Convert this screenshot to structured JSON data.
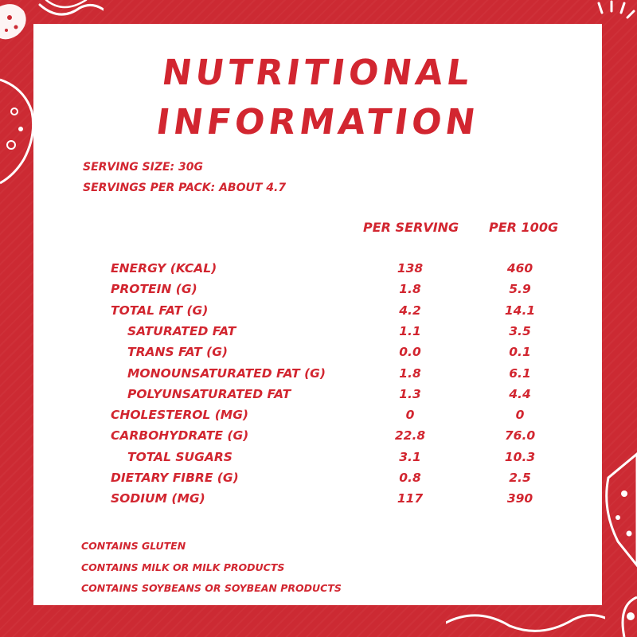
{
  "colors": {
    "background_red": "#cc2a33",
    "text_red": "#d22630",
    "panel": "#ffffff"
  },
  "title": {
    "line1": "NUTRITIONAL",
    "line2": "INFORMATION"
  },
  "serving": {
    "size": "SERVING SIZE: 30G",
    "per_pack": "SERVINGS PER PACK: ABOUT 4.7"
  },
  "columns": {
    "per_serving": "PER SERVING",
    "per_100g": "PER 100G"
  },
  "rows": [
    {
      "label": "ENERGY (KCAL)",
      "per_serving": "138",
      "per_100g": "460",
      "indent": false
    },
    {
      "label": "PROTEIN (G)",
      "per_serving": "1.8",
      "per_100g": "5.9",
      "indent": false
    },
    {
      "label": "TOTAL FAT (G)",
      "per_serving": "4.2",
      "per_100g": "14.1",
      "indent": false
    },
    {
      "label": "SATURATED FAT",
      "per_serving": "1.1",
      "per_100g": "3.5",
      "indent": true
    },
    {
      "label": "TRANS FAT (G)",
      "per_serving": "0.0",
      "per_100g": "0.1",
      "indent": true
    },
    {
      "label": "MONOUNSATURATED FAT (G)",
      "per_serving": "1.8",
      "per_100g": "6.1",
      "indent": true
    },
    {
      "label": "POLYUNSATURATED FAT",
      "per_serving": "1.3",
      "per_100g": "4.4",
      "indent": true
    },
    {
      "label": "CHOLESTEROL (MG)",
      "per_serving": "0",
      "per_100g": "0",
      "indent": false
    },
    {
      "label": "CARBOHYDRATE (G)",
      "per_serving": "22.8",
      "per_100g": "76.0",
      "indent": false
    },
    {
      "label": "TOTAL SUGARS",
      "per_serving": "3.1",
      "per_100g": "10.3",
      "indent": true
    },
    {
      "label": "DIETARY FIBRE (G)",
      "per_serving": "0.8",
      "per_100g": "2.5",
      "indent": false
    },
    {
      "label": "SODIUM (MG)",
      "per_serving": "117",
      "per_100g": "390",
      "indent": false
    }
  ],
  "allergens": [
    "CONTAINS GLUTEN",
    "CONTAINS MILK OR MILK PRODUCTS",
    "CONTAINS SOYBEANS OR SOYBEAN PRODUCTS"
  ]
}
